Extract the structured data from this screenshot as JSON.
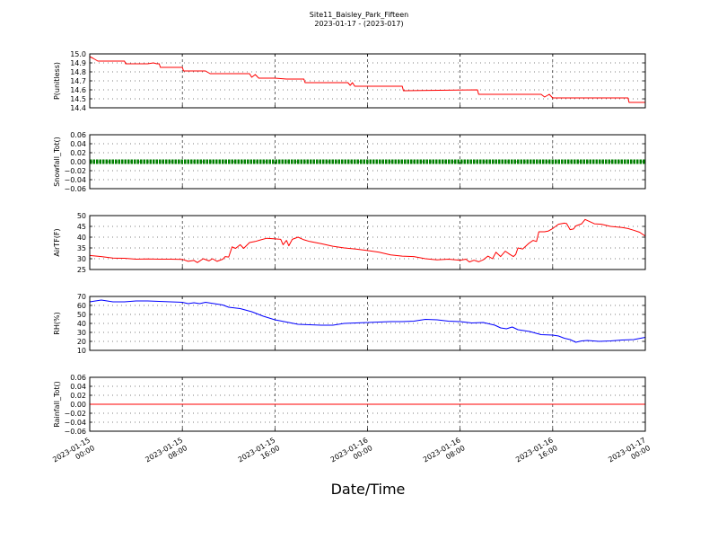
{
  "chart_data": {
    "type": "line",
    "title": "Site11_Baisley_Park_Fifteen",
    "subtitle": "2023-01-17 - (2023-017)",
    "xlabel": "Date/Time",
    "xlim": [
      "2023-01-15 00:00",
      "2023-01-17 00:00"
    ],
    "x_ticks": [
      {
        "line1": "2023-01-15",
        "line2": "00:00",
        "hour": 0
      },
      {
        "line1": "2023-01-15",
        "line2": "08:00",
        "hour": 8
      },
      {
        "line1": "2023-01-15",
        "line2": "16:00",
        "hour": 16
      },
      {
        "line1": "2023-01-16",
        "line2": "00:00",
        "hour": 24
      },
      {
        "line1": "2023-01-16",
        "line2": "08:00",
        "hour": 32
      },
      {
        "line1": "2023-01-16",
        "line2": "16:00",
        "hour": 40
      },
      {
        "line1": "2023-01-17",
        "line2": "00:00",
        "hour": 48
      }
    ],
    "grid": true,
    "panels": [
      {
        "ylabel": "P(unitless)",
        "ylim": [
          14.4,
          15.0
        ],
        "yticks": [
          14.4,
          14.5,
          14.6,
          14.7,
          14.8,
          14.9,
          15.0
        ],
        "ytick_labels": [
          "14.4",
          "14.5",
          "14.6",
          "14.7",
          "14.8",
          "14.9",
          "15.0"
        ],
        "series": [
          {
            "color": "#ff0000",
            "marker": false,
            "points": [
              [
                0,
                14.97
              ],
              [
                0.3,
                14.95
              ],
              [
                0.7,
                14.92
              ],
              [
                3,
                14.92
              ],
              [
                3.1,
                14.89
              ],
              [
                5,
                14.89
              ],
              [
                5.5,
                14.9
              ],
              [
                5.8,
                14.89
              ],
              [
                6,
                14.89
              ],
              [
                6.1,
                14.85
              ],
              [
                8,
                14.85
              ],
              [
                8.1,
                14.81
              ],
              [
                10,
                14.81
              ],
              [
                10.4,
                14.78
              ],
              [
                13.8,
                14.78
              ],
              [
                14.0,
                14.74
              ],
              [
                14.3,
                14.77
              ],
              [
                14.6,
                14.73
              ],
              [
                16,
                14.73
              ],
              [
                17,
                14.72
              ],
              [
                18,
                14.72
              ],
              [
                18.5,
                14.72
              ],
              [
                18.6,
                14.68
              ],
              [
                22.3,
                14.68
              ],
              [
                22.5,
                14.65
              ],
              [
                22.7,
                14.68
              ],
              [
                22.9,
                14.64
              ],
              [
                27,
                14.64
              ],
              [
                27.1,
                14.59
              ],
              [
                33.5,
                14.6
              ],
              [
                33.6,
                14.55
              ],
              [
                39,
                14.55
              ],
              [
                39.3,
                14.52
              ],
              [
                39.7,
                14.55
              ],
              [
                40,
                14.51
              ],
              [
                46.5,
                14.51
              ],
              [
                46.6,
                14.46
              ],
              [
                48,
                14.46
              ]
            ]
          }
        ]
      },
      {
        "ylabel": "Snowfall_Tot()",
        "ylim": [
          -0.06,
          0.06
        ],
        "yticks": [
          -0.06,
          -0.04,
          -0.02,
          0.0,
          0.02,
          0.04,
          0.06
        ],
        "ytick_labels": [
          "−0.06",
          "−0.04",
          "−0.02",
          "0.00",
          "0.02",
          "0.04",
          "0.06"
        ],
        "series": [
          {
            "color": "#008000",
            "marker": true,
            "points": [
              [
                0,
                0
              ],
              [
                48,
                0
              ]
            ]
          }
        ]
      },
      {
        "ylabel": "AirTF(F)",
        "ylim": [
          25,
          50
        ],
        "yticks": [
          25,
          30,
          35,
          40,
          45,
          50
        ],
        "ytick_labels": [
          "25",
          "30",
          "35",
          "40",
          "45",
          "50"
        ],
        "series": [
          {
            "color": "#ff0000",
            "marker": false,
            "points": [
              [
                0,
                31.5
              ],
              [
                1,
                31
              ],
              [
                2,
                30.3
              ],
              [
                3,
                30.2
              ],
              [
                4,
                29.8
              ],
              [
                5,
                29.9
              ],
              [
                6,
                29.8
              ],
              [
                7,
                29.8
              ],
              [
                8,
                29.7
              ],
              [
                8.5,
                28.8
              ],
              [
                9,
                29.2
              ],
              [
                9.3,
                28.2
              ],
              [
                9.8,
                30
              ],
              [
                10.3,
                29
              ],
              [
                10.6,
                30
              ],
              [
                11,
                28.8
              ],
              [
                11.5,
                29.8
              ],
              [
                11.7,
                31
              ],
              [
                12,
                30.8
              ],
              [
                12.3,
                35.5
              ],
              [
                12.6,
                34.8
              ],
              [
                13,
                36.5
              ],
              [
                13.3,
                34.8
              ],
              [
                13.8,
                37.5
              ],
              [
                14.3,
                38
              ],
              [
                14.8,
                38.8
              ],
              [
                15.3,
                39.5
              ],
              [
                16,
                39.2
              ],
              [
                16.5,
                39
              ],
              [
                16.7,
                36.5
              ],
              [
                17,
                38.5
              ],
              [
                17.2,
                36
              ],
              [
                17.5,
                39
              ],
              [
                18,
                40
              ],
              [
                18.5,
                38.8
              ],
              [
                19,
                38
              ],
              [
                20,
                37
              ],
              [
                21,
                35.8
              ],
              [
                22,
                35
              ],
              [
                23,
                34.5
              ],
              [
                24,
                33.8
              ],
              [
                25,
                33
              ],
              [
                26,
                31.8
              ],
              [
                27,
                31.2
              ],
              [
                28,
                31
              ],
              [
                29,
                30
              ],
              [
                30,
                29.5
              ],
              [
                31,
                29.8
              ],
              [
                32,
                29.3
              ],
              [
                32.5,
                29.8
              ],
              [
                32.8,
                28.5
              ],
              [
                33.2,
                29.3
              ],
              [
                33.6,
                28.6
              ],
              [
                34,
                29.5
              ],
              [
                34.4,
                31.2
              ],
              [
                34.8,
                30
              ],
              [
                35.1,
                33
              ],
              [
                35.5,
                31
              ],
              [
                35.9,
                33.5
              ],
              [
                36.3,
                32
              ],
              [
                36.6,
                31
              ],
              [
                36.8,
                32
              ],
              [
                37,
                35
              ],
              [
                37.4,
                34.5
              ],
              [
                37.9,
                37
              ],
              [
                38.3,
                38.5
              ],
              [
                38.6,
                38
              ],
              [
                38.8,
                42.5
              ],
              [
                39.3,
                42.5
              ],
              [
                39.6,
                42.8
              ],
              [
                40,
                44
              ],
              [
                40.5,
                46
              ],
              [
                41,
                46.5
              ],
              [
                41.2,
                46.3
              ],
              [
                41.5,
                43.5
              ],
              [
                41.8,
                43.8
              ],
              [
                42,
                45.2
              ],
              [
                42.5,
                46.2
              ],
              [
                42.8,
                48.2
              ],
              [
                43.2,
                47.2
              ],
              [
                43.6,
                46.2
              ],
              [
                44.2,
                46
              ],
              [
                45,
                45
              ],
              [
                46,
                44.5
              ],
              [
                46.5,
                44
              ],
              [
                47,
                43.2
              ],
              [
                47.5,
                42.3
              ],
              [
                48,
                40.5
              ]
            ]
          }
        ]
      },
      {
        "ylabel": "RH(%)",
        "ylim": [
          10,
          70
        ],
        "yticks": [
          10,
          20,
          30,
          40,
          50,
          60,
          70
        ],
        "ytick_labels": [
          "10",
          "20",
          "30",
          "40",
          "50",
          "60",
          "70"
        ],
        "series": [
          {
            "color": "#0000ff",
            "marker": false,
            "points": [
              [
                0,
                64
              ],
              [
                1,
                66
              ],
              [
                2,
                64
              ],
              [
                3,
                64
              ],
              [
                4,
                65
              ],
              [
                5,
                65
              ],
              [
                6,
                64.5
              ],
              [
                7,
                64
              ],
              [
                8,
                63.5
              ],
              [
                8.5,
                62
              ],
              [
                9,
                63
              ],
              [
                9.5,
                62
              ],
              [
                10,
                63.5
              ],
              [
                10.5,
                62.5
              ],
              [
                11,
                61.5
              ],
              [
                11.5,
                60.5
              ],
              [
                12,
                58
              ],
              [
                13,
                56.5
              ],
              [
                14,
                53
              ],
              [
                15,
                48
              ],
              [
                16,
                44
              ],
              [
                17,
                41.5
              ],
              [
                18,
                39
              ],
              [
                19,
                38.5
              ],
              [
                20,
                38
              ],
              [
                21,
                38
              ],
              [
                22,
                40
              ],
              [
                23,
                40.5
              ],
              [
                24,
                41
              ],
              [
                25,
                41.5
              ],
              [
                26,
                42
              ],
              [
                27,
                42
              ],
              [
                28,
                42.5
              ],
              [
                29,
                44.5
              ],
              [
                30,
                44
              ],
              [
                31,
                42.5
              ],
              [
                32,
                42
              ],
              [
                33,
                40.5
              ],
              [
                34,
                41
              ],
              [
                35,
                38
              ],
              [
                35.5,
                35
              ],
              [
                36,
                34
              ],
              [
                36.5,
                36
              ],
              [
                37,
                33
              ],
              [
                38,
                31
              ],
              [
                39,
                27.5
              ],
              [
                40,
                27
              ],
              [
                40.5,
                26
              ],
              [
                41,
                23.5
              ],
              [
                41.5,
                22
              ],
              [
                42,
                19
              ],
              [
                42.5,
                20.5
              ],
              [
                43,
                21
              ],
              [
                44,
                20
              ],
              [
                45,
                20.5
              ],
              [
                46,
                21.5
              ],
              [
                47,
                22
              ],
              [
                48,
                24.5
              ]
            ]
          }
        ]
      },
      {
        "ylabel": "Rainfall_Tot()",
        "ylim": [
          -0.06,
          0.06
        ],
        "yticks": [
          -0.06,
          -0.04,
          -0.02,
          0.0,
          0.02,
          0.04,
          0.06
        ],
        "ytick_labels": [
          "−0.06",
          "−0.04",
          "−0.02",
          "0.00",
          "0.02",
          "0.04",
          "0.06"
        ],
        "series": [
          {
            "color": "#ff0000",
            "marker": false,
            "points": [
              [
                0,
                0
              ],
              [
                48,
                0
              ]
            ]
          }
        ]
      }
    ]
  }
}
